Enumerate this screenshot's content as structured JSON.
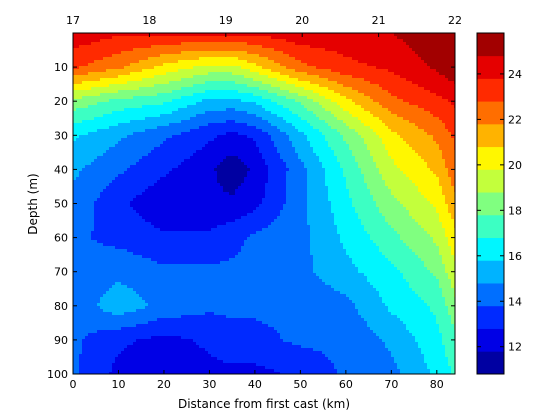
{
  "chart_data": {
    "type": "heatmap",
    "subtype": "filled-contour",
    "title": "",
    "xlabel": "Distance from first cast (km)",
    "ylabel": "Depth (m)",
    "xlim": [
      0,
      84
    ],
    "ylim": [
      100,
      0
    ],
    "y_axis_inverted": true,
    "x_ticks": [
      0,
      10,
      20,
      30,
      40,
      50,
      60,
      70,
      80
    ],
    "y_ticks": [
      10,
      20,
      30,
      40,
      50,
      60,
      70,
      80,
      90,
      100
    ],
    "top_axis": {
      "ticks": [
        17,
        18,
        19,
        20,
        21,
        22
      ],
      "tick_positions_km": [
        0,
        16.8,
        33.6,
        50.4,
        67.2,
        84
      ]
    },
    "colormap": "jet",
    "colorbar": {
      "range": [
        10.8,
        25.8
      ],
      "ticks": [
        12,
        14,
        16,
        18,
        20,
        22,
        24
      ]
    },
    "x_km": [
      0,
      10,
      20,
      30,
      35,
      40,
      50,
      60,
      70,
      80,
      84
    ],
    "depth_m": [
      0,
      10,
      20,
      30,
      40,
      50,
      60,
      70,
      80,
      90,
      100
    ],
    "values": [
      [
        24.5,
        24.0,
        24.0,
        24.0,
        24.0,
        24.0,
        24.5,
        24.5,
        24.8,
        25.5,
        25.5
      ],
      [
        23.0,
        22.0,
        20.5,
        19.5,
        19.5,
        20.5,
        22.5,
        23.5,
        24.0,
        25.0,
        25.5
      ],
      [
        18.5,
        17.5,
        17.0,
        15.5,
        15.5,
        16.0,
        18.0,
        20.5,
        22.5,
        23.5,
        24.0
      ],
      [
        16.0,
        15.0,
        14.0,
        13.0,
        12.5,
        13.0,
        15.5,
        18.0,
        20.5,
        22.0,
        23.0
      ],
      [
        15.0,
        14.0,
        13.0,
        12.0,
        11.2,
        12.0,
        14.5,
        17.0,
        19.5,
        21.0,
        22.5
      ],
      [
        14.5,
        13.0,
        12.0,
        12.0,
        12.0,
        12.5,
        14.5,
        16.5,
        18.5,
        20.0,
        21.5
      ],
      [
        14.0,
        13.5,
        13.0,
        13.0,
        13.5,
        14.0,
        14.5,
        16.0,
        17.5,
        19.0,
        20.5
      ],
      [
        14.0,
        14.5,
        14.0,
        14.0,
        14.0,
        14.0,
        14.5,
        15.5,
        16.5,
        18.0,
        19.5
      ],
      [
        14.0,
        15.5,
        14.5,
        14.0,
        14.0,
        14.0,
        14.0,
        14.5,
        16.0,
        17.0,
        18.5
      ],
      [
        14.0,
        13.0,
        12.5,
        13.0,
        13.5,
        13.5,
        14.0,
        14.0,
        15.0,
        16.5,
        17.5
      ],
      [
        14.0,
        12.5,
        12.0,
        12.5,
        12.5,
        12.5,
        13.0,
        14.0,
        14.5,
        16.0,
        17.0
      ]
    ]
  }
}
